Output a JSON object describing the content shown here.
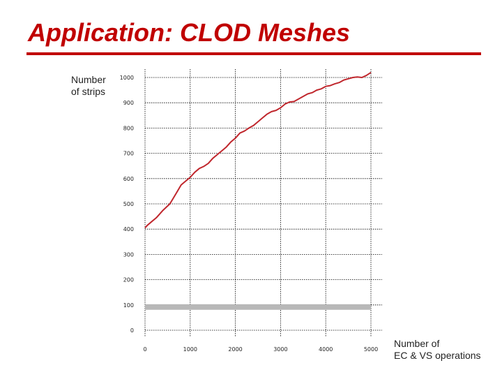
{
  "slide": {
    "title": "Application: CLOD Meshes",
    "ylabel": "Number\nof strips",
    "xlabel": "Number of\nEC & VS operations"
  },
  "colors": {
    "title": "#c00000",
    "series": "#c0272d",
    "band": "#b8b8b8",
    "grid": "#000000"
  },
  "chart_data": {
    "type": "line",
    "title": "",
    "xlabel": "Number of EC & VS operations",
    "ylabel": "Number of strips",
    "xlim": [
      0,
      5000
    ],
    "ylim": [
      0,
      1000
    ],
    "xticks": [
      "0",
      "1000",
      "2000",
      "3000",
      "4000",
      "5000"
    ],
    "yticks": [
      "0",
      "100",
      "200",
      "300",
      "400",
      "500",
      "600",
      "700",
      "800",
      "900",
      "1000"
    ],
    "grid": "dotted",
    "series": [
      {
        "x": [
          0,
          50,
          150,
          250,
          400,
          550,
          600,
          700,
          800,
          900,
          1000,
          1100,
          1200,
          1300,
          1400,
          1500,
          1600,
          1700,
          1800,
          1900,
          2000,
          2100,
          2200,
          2300,
          2400,
          2500,
          2600,
          2700,
          2800,
          2900,
          3000,
          3100,
          3200,
          3300,
          3400,
          3500,
          3600,
          3700,
          3800,
          3900,
          4000,
          4100,
          4200,
          4300,
          4400,
          4500,
          4600,
          4700,
          4800,
          4900,
          5000
        ],
        "y": [
          405,
          415,
          430,
          445,
          475,
          500,
          515,
          545,
          575,
          590,
          605,
          625,
          640,
          648,
          660,
          680,
          695,
          710,
          725,
          745,
          760,
          780,
          788,
          800,
          810,
          825,
          840,
          855,
          865,
          870,
          880,
          895,
          903,
          905,
          915,
          925,
          935,
          940,
          950,
          955,
          965,
          968,
          975,
          980,
          990,
          995,
          1000,
          1002,
          1000,
          1008,
          1020
        ]
      },
      {
        "name": "",
        "x": [
          0,
          5000
        ],
        "y": [
          92,
          92
        ]
      }
    ]
  }
}
